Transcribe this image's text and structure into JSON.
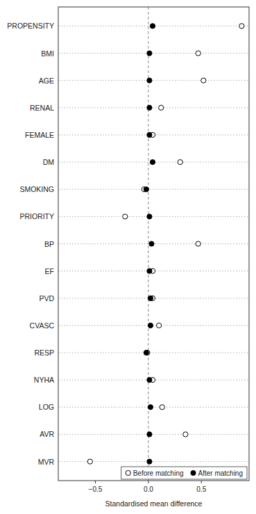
{
  "chart_data": {
    "type": "scatter",
    "orientation": "horizontal",
    "categories": [
      "PROPENSITY",
      "BMI",
      "AGE",
      "RENAL",
      "FEMALE",
      "DM",
      "SMOKING",
      "PRIORITY",
      "BP",
      "EF",
      "PVD",
      "CVASC",
      "RESP",
      "NYHA",
      "LOG",
      "AVR",
      "MVR"
    ],
    "series": [
      {
        "name": "Before matching",
        "color": "black",
        "marker": "circle-open",
        "values": [
          0.88,
          0.47,
          0.52,
          0.12,
          0.04,
          0.3,
          -0.04,
          -0.22,
          0.47,
          0.04,
          0.04,
          0.1,
          -0.01,
          0.04,
          0.13,
          0.35,
          -0.55
        ]
      },
      {
        "name": "After matching",
        "color": "black",
        "marker": "circle",
        "values": [
          0.04,
          0.01,
          0.01,
          0.01,
          0.01,
          0.04,
          -0.02,
          0.01,
          0.03,
          0.01,
          0.02,
          0.02,
          -0.02,
          0.01,
          0.02,
          0.01,
          0.01
        ]
      }
    ],
    "xlabel": "Standardised mean difference",
    "xlim": [
      -0.85,
      0.95
    ],
    "xticks": [
      {
        "value": -0.5,
        "label": "−0.5"
      },
      {
        "value": 0.0,
        "label": "0.0"
      },
      0.5
    ],
    "grid": true,
    "legend": "lower right"
  }
}
